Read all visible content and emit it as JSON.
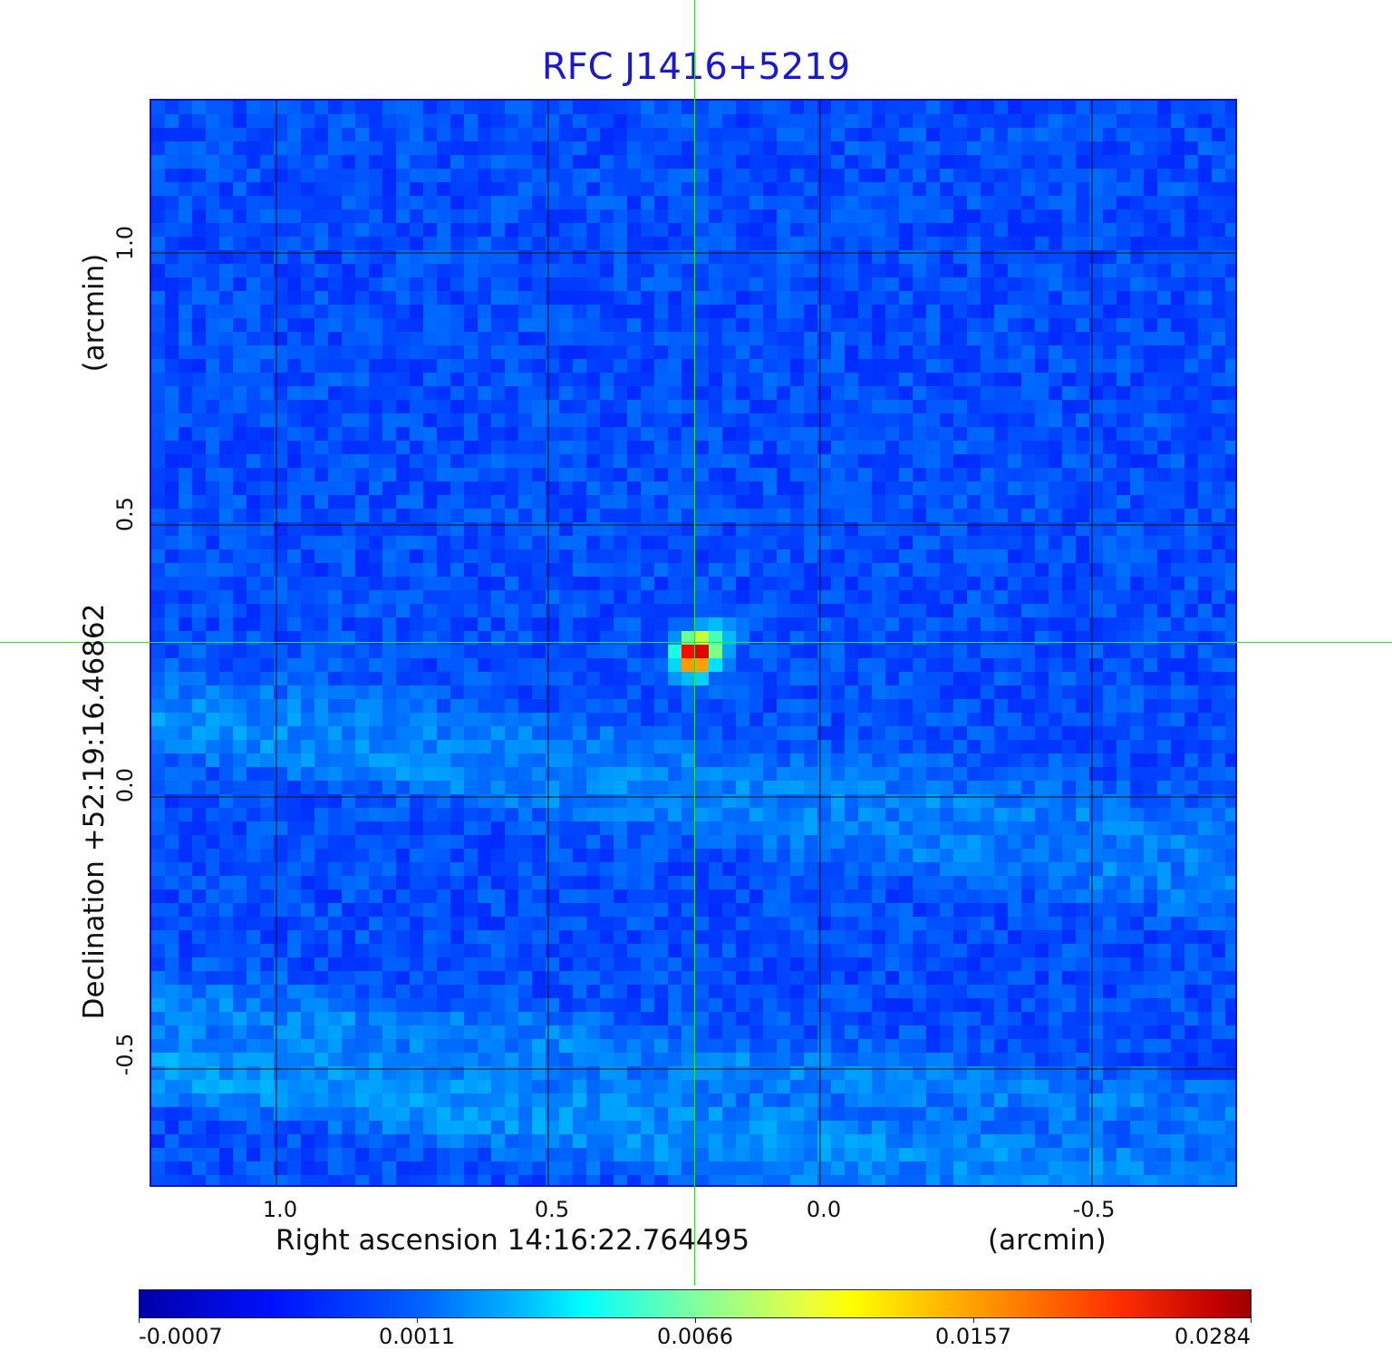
{
  "chart_data": {
    "type": "heatmap",
    "title": "RFC J1416+5219",
    "xlabel": "Right ascension  14:16:22.764495",
    "xunit": "(arcmin)",
    "ylabel": "Declination  +52:19:16.46862",
    "yunit": "(arcmin)",
    "xlim": [
      1.23,
      -0.77
    ],
    "ylim": [
      -0.72,
      1.28
    ],
    "xticks": [
      {
        "value": 1.0,
        "label": "1.0"
      },
      {
        "value": 0.5,
        "label": "0.5"
      },
      {
        "value": 0.0,
        "label": "0.0"
      },
      {
        "value": -0.5,
        "label": "-0.5"
      }
    ],
    "yticks": [
      {
        "value": 1.0,
        "label": "1.0"
      },
      {
        "value": 0.5,
        "label": "0.5"
      },
      {
        "value": 0.0,
        "label": "0.0"
      },
      {
        "value": -0.5,
        "label": "-0.5"
      }
    ],
    "grid": true,
    "crosshair": {
      "x": 0.23,
      "y": 0.28
    },
    "source": {
      "x": 0.23,
      "y": 0.26,
      "peak": 0.0284
    },
    "colorbar": {
      "ticks": [
        "-0.0007",
        "0.0011",
        "0.0066",
        "0.0157",
        "0.0284"
      ],
      "colormap": "jet"
    }
  }
}
